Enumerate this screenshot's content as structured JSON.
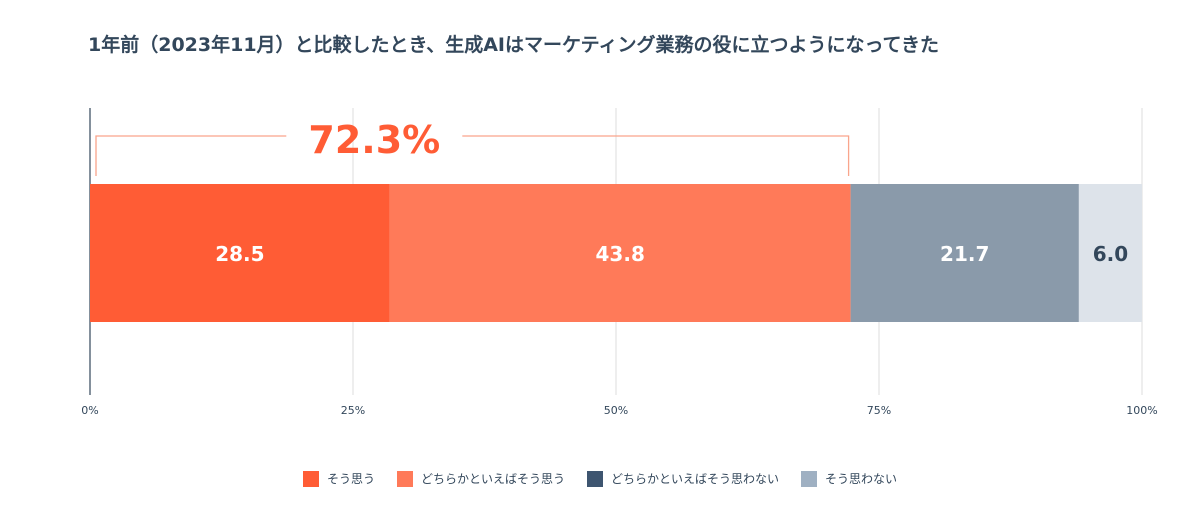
{
  "chart_data": {
    "type": "bar",
    "orientation": "horizontal",
    "stacked": true,
    "title": "1年前（2023年11月）と比較したとき、生成AIはマーケティング業務の役に立つようになってきた",
    "xlim": [
      0,
      100
    ],
    "ticks": [
      0,
      25,
      50,
      75,
      100
    ],
    "tick_labels": [
      "0%",
      "25%",
      "50%",
      "75%",
      "100%"
    ],
    "grid": true,
    "legend_position": "bottom",
    "series": [
      {
        "name": "そう思う",
        "value": 28.5,
        "label": "28.5",
        "color": "#ff5c35",
        "label_color": "#ffffff"
      },
      {
        "name": "どちらかといえばそう思う",
        "value": 43.8,
        "label": "43.8",
        "color": "#ff7a59",
        "label_color": "#ffffff"
      },
      {
        "name": "どちらかといえばそう思わない",
        "value": 21.7,
        "label": "21.7",
        "color": "#8a9aaa",
        "label_color": "#ffffff"
      },
      {
        "name": "そう思わない",
        "value": 6.0,
        "label": "6.0",
        "color": "#dde3ea",
        "label_color": "#33475b"
      }
    ],
    "legend_colors": [
      "#ff5c35",
      "#ff7a59",
      "#3e5570",
      "#9fb0c2"
    ],
    "annotation": {
      "text": "72.3%",
      "span": [
        0,
        72.3
      ],
      "color": "#ff5c35"
    }
  }
}
